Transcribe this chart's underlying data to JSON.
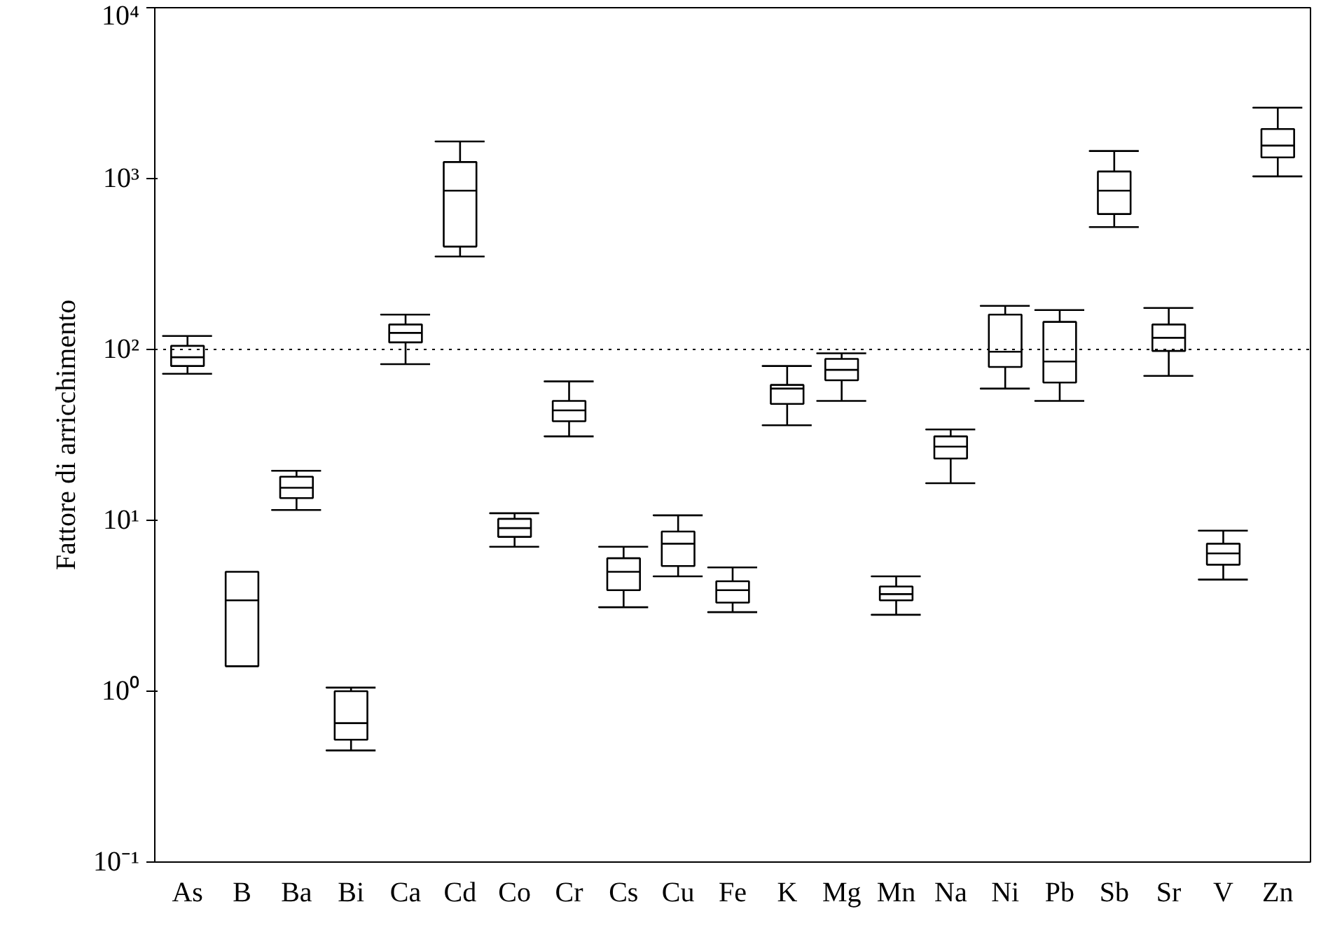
{
  "chart_data": {
    "type": "box",
    "ylabel": "Fattore di arricchimento",
    "log": true,
    "grid": false,
    "categories": [
      "As",
      "B",
      "Ba",
      "Bi",
      "Ca",
      "Cd",
      "Co",
      "Cr",
      "Cs",
      "Cu",
      "Fe",
      "K",
      "Mg",
      "Mn",
      "Na",
      "Ni",
      "Pb",
      "Sb",
      "Sr",
      "V",
      "Zn"
    ],
    "ylim": [
      0.1,
      10000
    ],
    "yticks": [
      {
        "value": 0.1,
        "label": "10⁻¹"
      },
      {
        "value": 1,
        "label": "10⁰"
      },
      {
        "value": 10,
        "label": "10¹"
      },
      {
        "value": 100,
        "label": "10²"
      },
      {
        "value": 1000,
        "label": "10³"
      },
      {
        "value": 10000,
        "label": "10⁴"
      }
    ],
    "ref_lines": [
      {
        "axis": "y",
        "value": 100,
        "color": "#000000",
        "line_style": "dotted"
      }
    ],
    "boxes": [
      {
        "low": 72,
        "q1": 80,
        "median": 90,
        "q3": 105,
        "high": 120
      },
      {
        "low": 1.4,
        "q1": 1.4,
        "median": 3.4,
        "q3": 5,
        "high": 5
      },
      {
        "low": 11.5,
        "q1": 13.5,
        "median": 15.5,
        "q3": 18,
        "high": 19.5
      },
      {
        "low": 0.45,
        "q1": 0.52,
        "median": 0.65,
        "q3": 1.0,
        "high": 1.05
      },
      {
        "low": 82,
        "q1": 110,
        "median": 125,
        "q3": 140,
        "high": 160
      },
      {
        "low": 350,
        "q1": 400,
        "median": 850,
        "q3": 1250,
        "high": 1650
      },
      {
        "low": 7,
        "q1": 8,
        "median": 9,
        "q3": 10.2,
        "high": 11
      },
      {
        "low": 31,
        "q1": 38,
        "median": 44,
        "q3": 50,
        "high": 65
      },
      {
        "low": 3.1,
        "q1": 3.9,
        "median": 5,
        "q3": 6,
        "high": 7
      },
      {
        "low": 4.7,
        "q1": 5.4,
        "median": 7.3,
        "q3": 8.6,
        "high": 10.7
      },
      {
        "low": 2.9,
        "q1": 3.3,
        "median": 3.9,
        "q3": 4.4,
        "high": 5.3
      },
      {
        "low": 36,
        "q1": 48,
        "median": 59,
        "q3": 62,
        "high": 80
      },
      {
        "low": 50,
        "q1": 66,
        "median": 76,
        "q3": 88,
        "high": 95
      },
      {
        "low": 2.8,
        "q1": 3.4,
        "median": 3.7,
        "q3": 4.1,
        "high": 4.7
      },
      {
        "low": 16.5,
        "q1": 23,
        "median": 27,
        "q3": 31,
        "high": 34
      },
      {
        "low": 59,
        "q1": 79,
        "median": 97,
        "q3": 160,
        "high": 180
      },
      {
        "low": 50,
        "q1": 64,
        "median": 85,
        "q3": 145,
        "high": 170
      },
      {
        "low": 520,
        "q1": 620,
        "median": 850,
        "q3": 1100,
        "high": 1450
      },
      {
        "low": 70,
        "q1": 98,
        "median": 117,
        "q3": 140,
        "high": 175
      },
      {
        "low": 4.5,
        "q1": 5.5,
        "median": 6.4,
        "q3": 7.3,
        "high": 8.7
      },
      {
        "low": 1030,
        "q1": 1330,
        "median": 1560,
        "q3": 1950,
        "high": 2600
      }
    ]
  }
}
